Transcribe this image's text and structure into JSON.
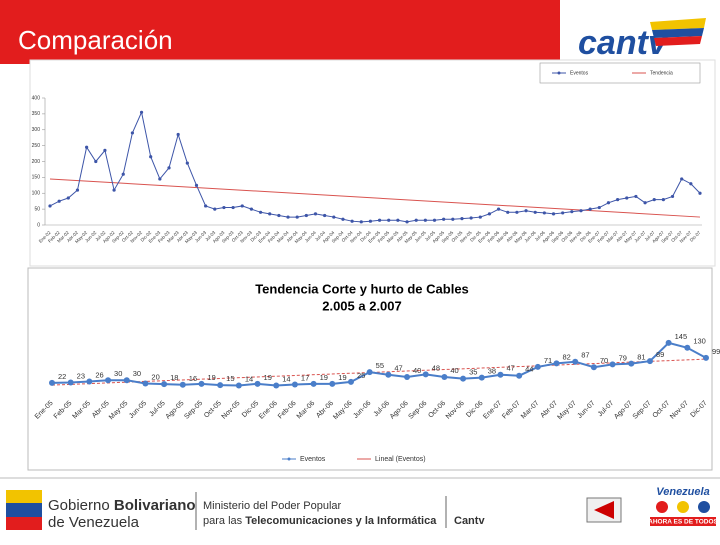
{
  "header": {
    "title": "Comparación",
    "logo": "cantv"
  },
  "chart_data": [
    {
      "type": "line",
      "categories": [
        "Ene-02",
        "Feb-02",
        "Mar-02",
        "Abr-02",
        "May-02",
        "Jun-02",
        "Jul-02",
        "Ago-02",
        "Sep-02",
        "Oct-02",
        "Nov-02",
        "Dic-02",
        "Ene-03",
        "Feb-03",
        "Mar-03",
        "Abr-03",
        "May-03",
        "Jun-03",
        "Jul-03",
        "Ago-03",
        "Sep-03",
        "Oct-03",
        "Nov-03",
        "Dic-03",
        "Ene-04",
        "Feb-04",
        "Mar-04",
        "Abr-04",
        "May-04",
        "Jun-04",
        "Jul-04",
        "Ago-04",
        "Sep-04",
        "Oct-04",
        "Nov-04",
        "Dic-04",
        "Ene-05",
        "Feb-05",
        "Mar-05",
        "Abr-05",
        "May-05",
        "Jun-05",
        "Jul-05",
        "Ago-05",
        "Sep-05",
        "Oct-05",
        "Nov-05",
        "Dic-05",
        "Ene-06",
        "Feb-06",
        "Mar-06",
        "Abr-06",
        "May-06",
        "Jun-06",
        "Jul-06",
        "Ago-06",
        "Sep-06",
        "Oct-06",
        "Nov-06",
        "Dic-06",
        "Ene-07",
        "Feb-07",
        "Mar-07",
        "Abr-07",
        "May-07",
        "Jun-07",
        "Jul-07",
        "Ago-07",
        "Sep-07",
        "Oct-07",
        "Nov-07",
        "Dic-07"
      ],
      "series": [
        {
          "name": "Eventos",
          "color": "#3d55a8",
          "values": [
            60,
            75,
            85,
            110,
            245,
            200,
            235,
            110,
            160,
            290,
            355,
            215,
            145,
            180,
            285,
            195,
            125,
            60,
            50,
            55,
            55,
            60,
            50,
            40,
            35,
            30,
            25,
            25,
            30,
            35,
            30,
            25,
            18,
            12,
            10,
            12,
            15,
            15,
            15,
            10,
            15,
            15,
            15,
            18,
            18,
            20,
            22,
            25,
            35,
            50,
            40,
            40,
            45,
            40,
            38,
            35,
            38,
            42,
            45,
            50,
            55,
            70,
            80,
            85,
            90,
            70,
            80,
            80,
            90,
            145,
            130,
            100
          ]
        }
      ],
      "trend": {
        "name": "Tendencia",
        "color": "#d9534f",
        "start": 145,
        "end": 25
      },
      "ylim": [
        0,
        400
      ],
      "yticks": [
        0,
        50,
        100,
        150,
        200,
        250,
        300,
        350,
        400
      ],
      "grid": false
    },
    {
      "type": "line",
      "title": "Tendencia Corte y hurto de Cables",
      "subtitle": "2.005 a 2.007",
      "categories": [
        "Ene-05",
        "Feb-05",
        "Mar-05",
        "Abr-05",
        "May-05",
        "Jun-05",
        "Jul-05",
        "Ago-05",
        "Sep-05",
        "Oct-05",
        "Nov-05",
        "Dic-05",
        "Ene-06",
        "Feb-06",
        "Mar-06",
        "Abr-06",
        "May-06",
        "Jun-06",
        "Jul-06",
        "Ago-06",
        "Sep-06",
        "Oct-06",
        "Nov-06",
        "Dic-06",
        "Ene-07",
        "Feb-07",
        "Mar-07",
        "Abr-07",
        "May-07",
        "Jun-07",
        "Jul-07",
        "Ago-07",
        "Sep-07",
        "Oct-07",
        "Nov-07",
        "Dic-07"
      ],
      "series": [
        {
          "name": "Eventos",
          "color": "#4a7ec9",
          "values": [
            22,
            23,
            26,
            30,
            30,
            20,
            18,
            16,
            19,
            15,
            14,
            19,
            14,
            17,
            19,
            19,
            25,
            55,
            47,
            40,
            48,
            40,
            35,
            38,
            47,
            44,
            71,
            82,
            87,
            70,
            79,
            81,
            89,
            145,
            130,
            99
          ]
        }
      ],
      "trend": {
        "name": "Lineal (Eventos)",
        "color": "#d9534f",
        "start": 15,
        "end": 95
      },
      "ylim": [
        0,
        160
      ]
    }
  ],
  "footer": {
    "gov_line1": "Gobierno",
    "gov_line1b": "Bolivariano",
    "gov_line2": "de Venezuela",
    "ministry_line1": "Ministerio del Poder Popular",
    "ministry_line2a": "para las",
    "ministry_line2b": "Telecomunicaciones y la Informática",
    "company": "Cantv",
    "badge_top": "Venezuela",
    "badge_bottom": "AHORA ES DE TODOS"
  }
}
